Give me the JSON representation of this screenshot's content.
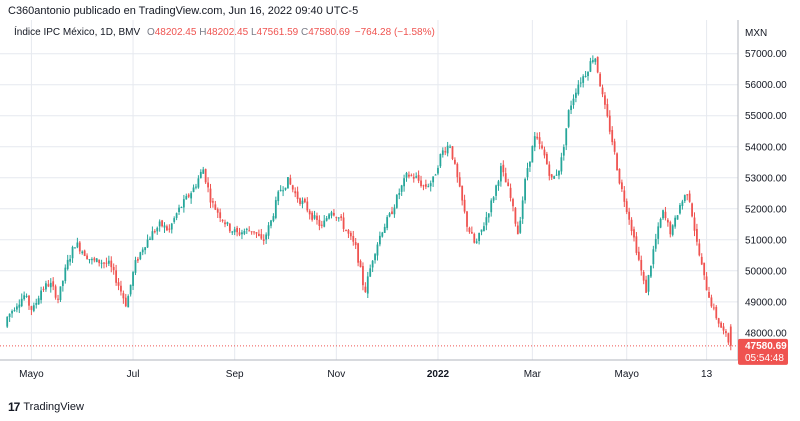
{
  "header": {
    "publisher_line": "C360antonio publicado en TradingView.com, Jun 16, 2022 09:40 UTC-5"
  },
  "legend": {
    "symbol": "Índice IPC México, 1D, BMV",
    "open_label": "O",
    "open": "48202.45",
    "high_label": "H",
    "high": "48202.45",
    "low_label": "L",
    "low": "47561.59",
    "close_label": "C",
    "close": "47580.69",
    "change": "−764.28 (−1.58%)"
  },
  "price_tag": {
    "price": "47580.69",
    "countdown": "05:54:48"
  },
  "footer": {
    "brand": "TradingView"
  },
  "colors": {
    "up": "#26a69a",
    "down": "#ef5350",
    "grid": "#e6e9ef",
    "axis_text": "#131722"
  },
  "chart_data": {
    "type": "candlestick",
    "currency_label": "MXN",
    "y_ticks": [
      "57000.00",
      "56000.00",
      "55000.00",
      "54000.00",
      "53000.00",
      "52000.00",
      "51000.00",
      "50000.00",
      "49000.00",
      "48000.00"
    ],
    "ylim": [
      47350,
      57700
    ],
    "x_ticks": [
      "Mayo",
      "Jul",
      "Sep",
      "Nov",
      "2022",
      "Mar",
      "Mayo",
      "13"
    ],
    "x_tick_bold": [
      false,
      false,
      false,
      false,
      true,
      false,
      false,
      false
    ],
    "series_close": [
      48500,
      48900,
      49200,
      48700,
      49400,
      49600,
      49100,
      50200,
      50900,
      50600,
      50300,
      50300,
      50200,
      49600,
      48900,
      50200,
      50800,
      51200,
      51500,
      51300,
      51900,
      52300,
      52700,
      53300,
      52200,
      51800,
      51400,
      51200,
      51300,
      51300,
      50900,
      51600,
      52600,
      52900,
      52400,
      52100,
      51700,
      51400,
      52000,
      51700,
      51200,
      50700,
      49300,
      50500,
      51300,
      51800,
      52500,
      53100,
      53000,
      52700,
      52900,
      53800,
      54100,
      52800,
      51500,
      50800,
      51500,
      52300,
      53300,
      52500,
      51200,
      53200,
      54300,
      53800,
      52900,
      53400,
      55200,
      56000,
      56400,
      57000,
      55500,
      54300,
      52800,
      51800,
      50600,
      49300,
      50800,
      51900,
      51200,
      52100,
      52600,
      50900,
      49600,
      48700,
      48100,
      47580.69
    ],
    "series_open_first": 48200,
    "last_candle": {
      "open": 48202.45,
      "high": 48202.45,
      "low": 47561.59,
      "close": 47580.69
    },
    "grid": true
  }
}
